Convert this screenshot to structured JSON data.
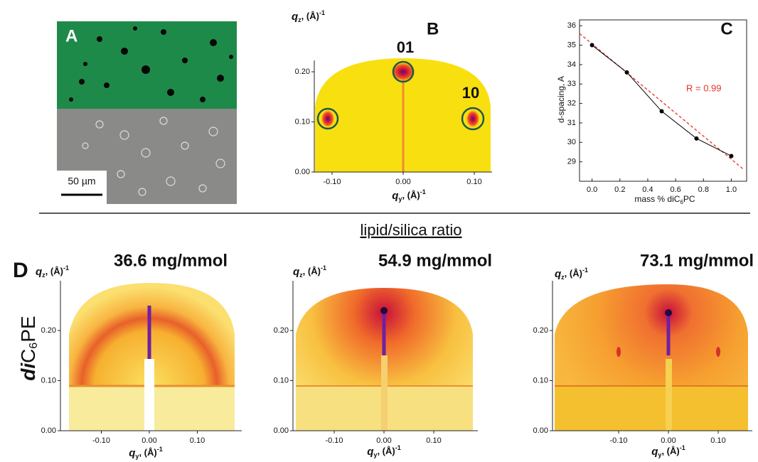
{
  "panel_a": {
    "label": "A",
    "scale_bar": "50 µm"
  },
  "panel_b": {
    "label": "B",
    "x_label": {
      "q": "q",
      "sub": "y",
      "unit": ", (Å)",
      "sup": "-1"
    },
    "y_label": {
      "q": "q",
      "sub": "z",
      "unit": ", (Å)",
      "sup": "-1"
    },
    "xticks": [
      {
        "value": -0.1,
        "label": "-0.10"
      },
      {
        "value": 0,
        "label": "0.00"
      },
      {
        "value": 0.1,
        "label": "0.10"
      }
    ],
    "yticks": [
      {
        "value": 0,
        "label": "0.00"
      },
      {
        "value": 0.1,
        "label": "0.10"
      },
      {
        "value": 0.2,
        "label": "0.20"
      }
    ],
    "spots": [
      "01",
      "10"
    ]
  },
  "chart_data": {
    "type": "line",
    "label": "C",
    "x": [
      0,
      0.25,
      0.5,
      0.75,
      1.0
    ],
    "values": [
      35.0,
      33.6,
      31.6,
      30.2,
      29.3
    ],
    "color": "#000000",
    "xlim": [
      -0.09,
      1.11
    ],
    "ylim": [
      28,
      36.3
    ],
    "xticks": [
      {
        "value": 0,
        "label": "0.0"
      },
      {
        "value": 0.2,
        "label": "0.2"
      },
      {
        "value": 0.4,
        "label": "0.4"
      },
      {
        "value": 0.6,
        "label": "0.6"
      },
      {
        "value": 0.8,
        "label": "0.8"
      },
      {
        "value": 1,
        "label": "1.0"
      }
    ],
    "yticks": [
      29,
      30,
      31,
      32,
      33,
      34,
      35,
      36
    ],
    "y_label": "d-spacing, A",
    "x_label": {
      "text": "mass % diC",
      "sub": "6",
      "tail": "PC"
    },
    "fit": {
      "x": [
        -0.09,
        1.09
      ],
      "values": [
        35.6,
        28.6
      ],
      "color": "#e8312a"
    },
    "annotation": "R = 0.99"
  },
  "section_title": "lipid/silica ratio",
  "panel_d": {
    "label": "D",
    "row_label": {
      "italic": "di",
      "text": "C",
      "sub": "6",
      "tail": "PE"
    },
    "plots": [
      {
        "title": "36.6 mg/mmol",
        "x_label": {
          "q": "q",
          "sub": "y",
          "unit": ", (Å)",
          "sup": "-1"
        },
        "y_label": {
          "q": "q",
          "sub": "z",
          "unit": ", (Å)",
          "sup": "-1"
        },
        "xticks": [
          {
            "value": -0.1,
            "label": "-0.10"
          },
          {
            "value": 0,
            "label": "0.00"
          },
          {
            "value": 0.1,
            "label": "0.10"
          }
        ],
        "yticks": [
          {
            "value": 0,
            "label": "0.00"
          },
          {
            "value": 0.1,
            "label": "0.10"
          },
          {
            "value": 0.2,
            "label": "0.20"
          }
        ]
      },
      {
        "title": "54.9 mg/mmol",
        "x_label": {
          "q": "q",
          "sub": "y",
          "unit": ", (Å)",
          "sup": "-1"
        },
        "y_label": {
          "q": "q",
          "sub": "z",
          "unit": ", (Å)",
          "sup": "-1"
        },
        "xticks": [
          {
            "value": -0.1,
            "label": "-0.10"
          },
          {
            "value": 0,
            "label": "0.00"
          },
          {
            "value": 0.1,
            "label": "0.10"
          }
        ],
        "yticks": [
          {
            "value": 0,
            "label": "0.00"
          },
          {
            "value": 0.1,
            "label": "0.10"
          },
          {
            "value": 0.2,
            "label": "0.20"
          }
        ]
      },
      {
        "title": "73.1 mg/mmol",
        "x_label": {
          "q": "q",
          "sub": "y",
          "unit": ", (Å)",
          "sup": "-1"
        },
        "y_label": {
          "q": "q",
          "sub": "z",
          "unit": ", (Å)",
          "sup": "-1"
        },
        "xticks": [
          {
            "value": -0.1,
            "label": "-0.10"
          },
          {
            "value": 0,
            "label": "0.00"
          },
          {
            "value": 0.1,
            "label": "0.10"
          }
        ],
        "yticks": [
          {
            "value": 0,
            "label": "0.00"
          },
          {
            "value": 0.1,
            "label": "0.10"
          },
          {
            "value": 0.2,
            "label": "0.20"
          }
        ]
      }
    ]
  }
}
